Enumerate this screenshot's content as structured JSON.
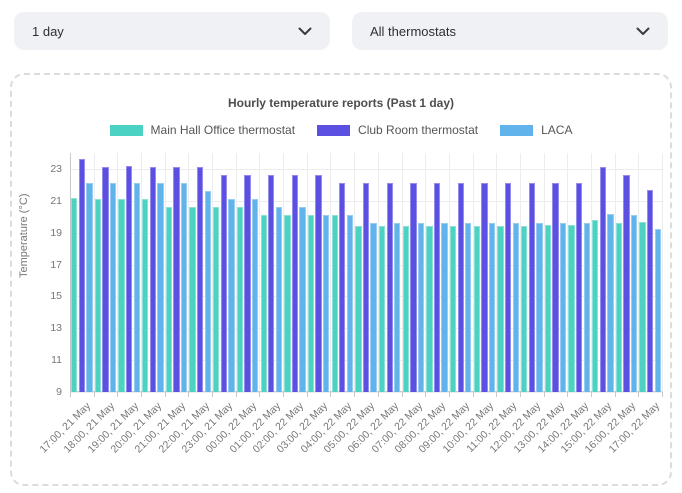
{
  "filters": {
    "period": {
      "value": "1 day"
    },
    "thermostat": {
      "value": "All thermostats"
    }
  },
  "chart_data": {
    "type": "bar",
    "title": "Hourly temperature reports (Past 1 day)",
    "xlabel": "",
    "ylabel": "Temperature (°C)",
    "ylim": [
      9,
      24
    ],
    "y_ticks": [
      9,
      11,
      13,
      15,
      17,
      19,
      21,
      23
    ],
    "grid": true,
    "legend_position": "top",
    "categories": [
      "17:00, 21 May",
      "18:00, 21 May",
      "19:00, 21 May",
      "20:00, 21 May",
      "21:00, 21 May",
      "22:00, 21 May",
      "23:00, 21 May",
      "00:00, 22 May",
      "01:00, 22 May",
      "02:00, 22 May",
      "03:00, 22 May",
      "04:00, 22 May",
      "05:00, 22 May",
      "06:00, 22 May",
      "07:00, 22 May",
      "08:00, 22 May",
      "09:00, 22 May",
      "10:00, 22 May",
      "11:00, 22 May",
      "12:00, 22 May",
      "13:00, 22 May",
      "14:00, 22 May",
      "15:00, 22 May",
      "16:00, 22 May",
      "17:00, 22 May"
    ],
    "series": [
      {
        "name": "Main Hall Office thermostat",
        "color": "#4BD2C3",
        "values": [
          21.2,
          21.1,
          21.1,
          21.1,
          20.6,
          20.6,
          20.6,
          20.6,
          20.1,
          20.1,
          20.1,
          20.1,
          19.4,
          19.4,
          19.4,
          19.4,
          19.4,
          19.4,
          19.4,
          19.4,
          19.5,
          19.5,
          19.8,
          19.6,
          19.7
        ]
      },
      {
        "name": "Club Room thermostat",
        "color": "#5C50E2",
        "values": [
          23.6,
          23.1,
          23.2,
          23.1,
          23.1,
          23.1,
          22.6,
          22.6,
          22.6,
          22.6,
          22.6,
          22.1,
          22.1,
          22.1,
          22.1,
          22.1,
          22.1,
          22.1,
          22.1,
          22.1,
          22.1,
          22.1,
          23.1,
          22.6,
          21.7
        ]
      },
      {
        "name": "LACA",
        "color": "#61B3EB",
        "values": [
          22.1,
          22.1,
          22.1,
          22.1,
          22.1,
          21.6,
          21.1,
          21.1,
          20.6,
          20.6,
          20.1,
          20.1,
          19.6,
          19.6,
          19.6,
          19.6,
          19.6,
          19.6,
          19.6,
          19.6,
          19.6,
          19.6,
          20.2,
          20.1,
          19.2
        ]
      }
    ]
  }
}
